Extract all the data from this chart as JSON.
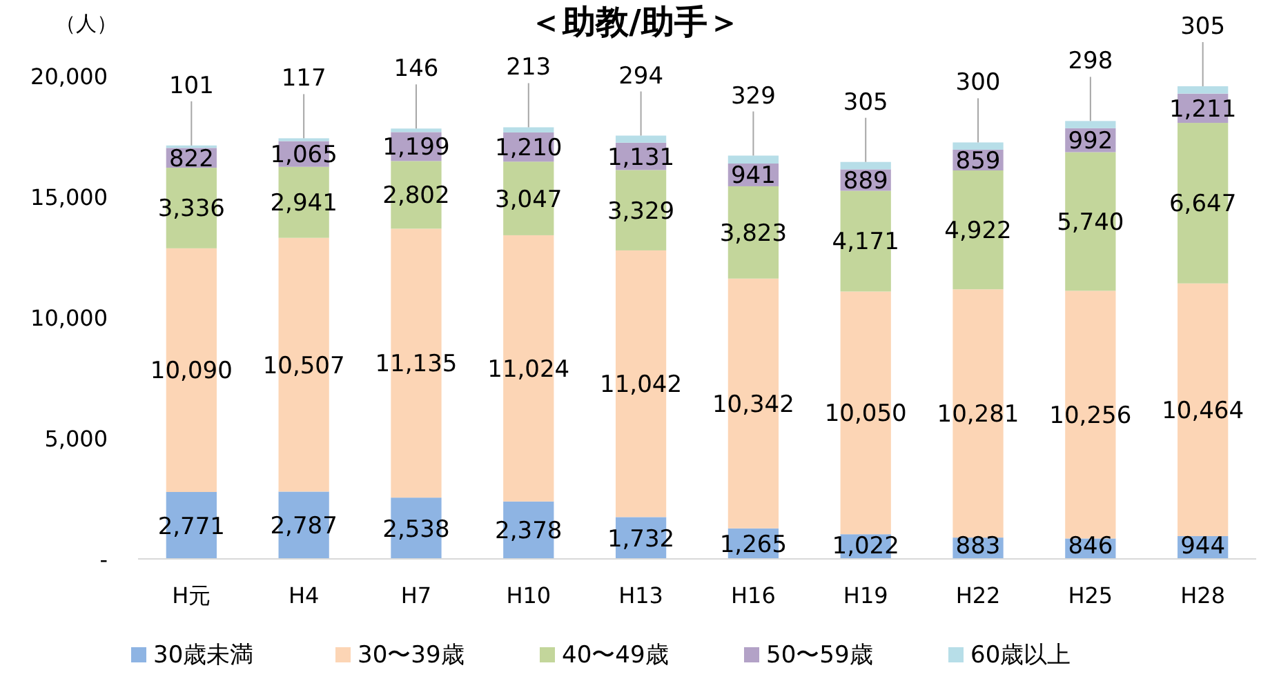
{
  "chart_data": {
    "type": "bar",
    "stacked": true,
    "title": "＜助教/助手＞",
    "ylabel": "（人）",
    "categories": [
      "H元",
      "H4",
      "H7",
      "H10",
      "H13",
      "H16",
      "H19",
      "H22",
      "H25",
      "H28"
    ],
    "ylim": [
      0,
      20000
    ],
    "yticks": [
      {
        "value": 0,
        "label": "-"
      },
      {
        "value": 5000,
        "label": "5,000"
      },
      {
        "value": 10000,
        "label": "10,000"
      },
      {
        "value": 15000,
        "label": "15,000"
      },
      {
        "value": 20000,
        "label": "20,000"
      }
    ],
    "grid": false,
    "legend": "bottom",
    "series": [
      {
        "name": "30歳未満",
        "color": "#8eb4e3",
        "values": [
          2771,
          2787,
          2538,
          2378,
          1732,
          1265,
          1022,
          883,
          846,
          944
        ],
        "value_labels": [
          "2,771",
          "2,787",
          "2,538",
          "2,378",
          "1,732",
          "1,265",
          "1,022",
          "883",
          "846",
          "944"
        ]
      },
      {
        "name": "30〜39歳",
        "color": "#fcd5b5",
        "values": [
          10090,
          10507,
          11135,
          11024,
          11042,
          10342,
          10050,
          10281,
          10256,
          10464
        ],
        "value_labels": [
          "10,090",
          "10,507",
          "11,135",
          "11,024",
          "11,042",
          "10,342",
          "10,050",
          "10,281",
          "10,256",
          "10,464"
        ]
      },
      {
        "name": "40〜49歳",
        "color": "#c3d69b",
        "values": [
          3336,
          2941,
          2802,
          3047,
          3329,
          3823,
          4171,
          4922,
          5740,
          6647
        ],
        "value_labels": [
          "3,336",
          "2,941",
          "2,802",
          "3,047",
          "3,329",
          "3,823",
          "4,171",
          "4,922",
          "5,740",
          "6,647"
        ]
      },
      {
        "name": "50〜59歳",
        "color": "#b3a2c7",
        "values": [
          822,
          1065,
          1199,
          1210,
          1131,
          941,
          889,
          859,
          992,
          1211
        ],
        "value_labels": [
          "822",
          "1,065",
          "1,199",
          "1,210",
          "1,131",
          "941",
          "889",
          "859",
          "992",
          "1,211"
        ]
      },
      {
        "name": "60歳以上",
        "color": "#b7dee8",
        "values": [
          101,
          117,
          146,
          213,
          294,
          329,
          305,
          300,
          298,
          305
        ],
        "value_labels": [
          "101",
          "117",
          "146",
          "213",
          "294",
          "329",
          "305",
          "300",
          "298",
          "305"
        ]
      }
    ]
  }
}
